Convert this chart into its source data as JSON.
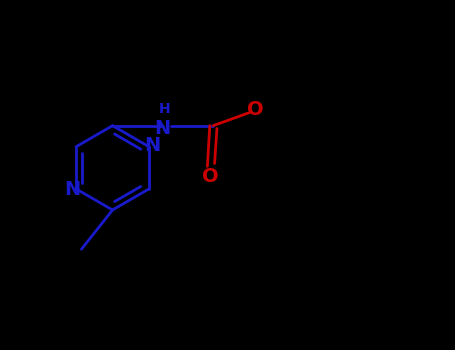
{
  "bg_color": "#000000",
  "bond_color_ring": "#1a1acd",
  "n_color": "#1a1acd",
  "o_color": "#cc0000",
  "tbu_color": "#000000",
  "lw": 2.0,
  "font_size_N": 14,
  "font_size_H": 10,
  "font_size_O": 14,
  "figsize": [
    4.55,
    3.5
  ],
  "dpi": 100,
  "xlim": [
    0,
    9.5
  ],
  "ylim": [
    0,
    7.0
  ]
}
